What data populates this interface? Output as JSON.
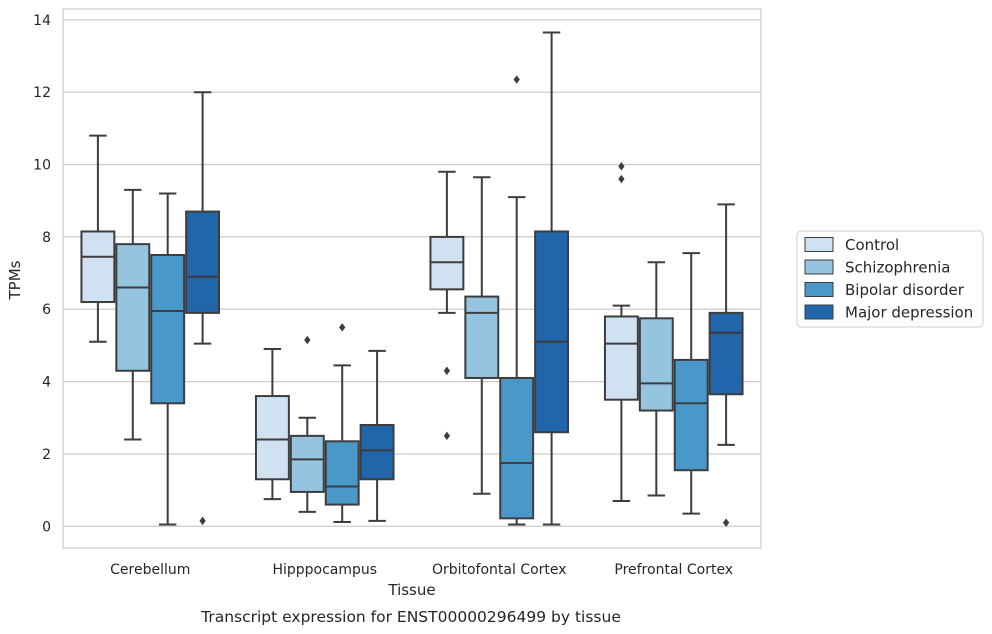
{
  "chart_data": {
    "type": "boxplot",
    "title": "",
    "caption": "Transcript expression for ENST00000296499 by tissue",
    "xlabel": "Tissue",
    "ylabel": "TPMs",
    "ylim": [
      -0.6,
      14.3
    ],
    "yticks": [
      0,
      2,
      4,
      6,
      8,
      10,
      12,
      14
    ],
    "grid": "horizontal",
    "legend_position": "right",
    "categories": [
      "Cerebellum",
      "Hipppocampus",
      "Orbitofontal Cortex",
      "Prefrontal Cortex"
    ],
    "series": [
      {
        "name": "Control",
        "color": "#d0e1f2",
        "boxes": [
          {
            "whislo": 5.1,
            "q1": 6.2,
            "med": 7.45,
            "q3": 8.15,
            "whishi": 10.8,
            "fliers": []
          },
          {
            "whislo": 0.75,
            "q1": 1.3,
            "med": 2.4,
            "q3": 3.6,
            "whishi": 4.9,
            "fliers": []
          },
          {
            "whislo": 5.9,
            "q1": 6.55,
            "med": 7.3,
            "q3": 8.0,
            "whishi": 9.8,
            "fliers": [
              4.3,
              2.5
            ]
          },
          {
            "whislo": 0.7,
            "q1": 3.5,
            "med": 5.05,
            "q3": 5.8,
            "whishi": 6.1,
            "fliers": [
              9.95,
              9.6
            ]
          }
        ]
      },
      {
        "name": "Schizophrenia",
        "color": "#94c4df",
        "boxes": [
          {
            "whislo": 2.4,
            "q1": 4.3,
            "med": 6.6,
            "q3": 7.8,
            "whishi": 9.3,
            "fliers": []
          },
          {
            "whislo": 0.4,
            "q1": 0.95,
            "med": 1.85,
            "q3": 2.5,
            "whishi": 3.0,
            "fliers": [
              5.15
            ]
          },
          {
            "whislo": 0.9,
            "q1": 4.1,
            "med": 5.9,
            "q3": 6.35,
            "whishi": 9.65,
            "fliers": []
          },
          {
            "whislo": 0.85,
            "q1": 3.2,
            "med": 3.95,
            "q3": 5.75,
            "whishi": 7.3,
            "fliers": []
          }
        ]
      },
      {
        "name": "Bipolar disorder",
        "color": "#4a98c9",
        "boxes": [
          {
            "whislo": 0.05,
            "q1": 3.4,
            "med": 5.95,
            "q3": 7.5,
            "whishi": 9.2,
            "fliers": []
          },
          {
            "whislo": 0.12,
            "q1": 0.6,
            "med": 1.1,
            "q3": 2.35,
            "whishi": 4.45,
            "fliers": [
              5.5
            ]
          },
          {
            "whislo": 0.05,
            "q1": 0.22,
            "med": 1.75,
            "q3": 4.1,
            "whishi": 9.1,
            "fliers": [
              12.35
            ]
          },
          {
            "whislo": 0.35,
            "q1": 1.55,
            "med": 3.4,
            "q3": 4.6,
            "whishi": 7.55,
            "fliers": []
          }
        ]
      },
      {
        "name": "Major depression",
        "color": "#2165ab",
        "boxes": [
          {
            "whislo": 5.05,
            "q1": 5.9,
            "med": 6.9,
            "q3": 8.7,
            "whishi": 12.0,
            "fliers": [
              0.15
            ]
          },
          {
            "whislo": 0.15,
            "q1": 1.3,
            "med": 2.1,
            "q3": 2.8,
            "whishi": 4.85,
            "fliers": []
          },
          {
            "whislo": 0.05,
            "q1": 2.6,
            "med": 5.1,
            "q3": 8.15,
            "whishi": 13.65,
            "fliers": []
          },
          {
            "whislo": 2.25,
            "q1": 3.65,
            "med": 5.35,
            "q3": 5.9,
            "whishi": 8.9,
            "fliers": [
              0.1
            ]
          }
        ]
      }
    ]
  }
}
